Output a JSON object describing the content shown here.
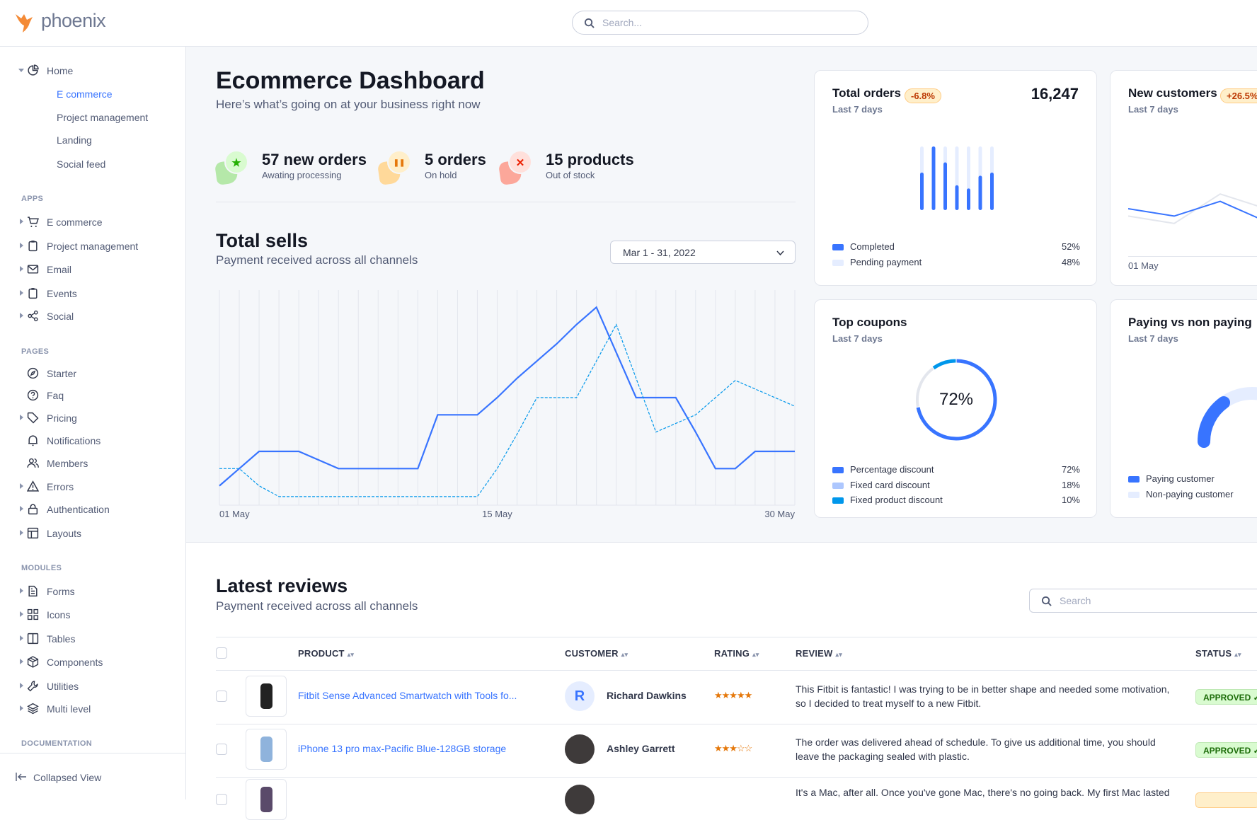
{
  "brand": {
    "name": "phoenix",
    "accent": "#3874ff",
    "logo_color": "#f48a36"
  },
  "topbar": {
    "search_placeholder": "Search..."
  },
  "sidebar": {
    "home": {
      "label": "Home",
      "icon": "pie-chart-icon",
      "children": [
        "E commerce",
        "Project management",
        "Landing",
        "Social feed"
      ],
      "active_child": 0
    },
    "sections": [
      {
        "title": "APPS",
        "items": [
          {
            "label": "E commerce",
            "icon": "cart-icon",
            "caret": true
          },
          {
            "label": "Project management",
            "icon": "clipboard-icon",
            "caret": true
          },
          {
            "label": "Email",
            "icon": "mail-icon",
            "caret": true
          },
          {
            "label": "Events",
            "icon": "clipboard-icon",
            "caret": true
          },
          {
            "label": "Social",
            "icon": "share-icon",
            "caret": true
          }
        ]
      },
      {
        "title": "PAGES",
        "items": [
          {
            "label": "Starter",
            "icon": "compass-icon",
            "caret": false
          },
          {
            "label": "Faq",
            "icon": "help-circle-icon",
            "caret": false
          },
          {
            "label": "Pricing",
            "icon": "tag-icon",
            "caret": true
          },
          {
            "label": "Notifications",
            "icon": "bell-icon",
            "caret": false
          },
          {
            "label": "Members",
            "icon": "users-icon",
            "caret": false
          },
          {
            "label": "Errors",
            "icon": "alert-triangle-icon",
            "caret": true
          },
          {
            "label": "Authentication",
            "icon": "lock-icon",
            "caret": true
          },
          {
            "label": "Layouts",
            "icon": "layout-icon",
            "caret": true
          }
        ]
      },
      {
        "title": "MODULES",
        "items": [
          {
            "label": "Forms",
            "icon": "file-text-icon",
            "caret": true
          },
          {
            "label": "Icons",
            "icon": "grid-icon",
            "caret": true
          },
          {
            "label": "Tables",
            "icon": "columns-icon",
            "caret": true
          },
          {
            "label": "Components",
            "icon": "package-icon",
            "caret": true
          },
          {
            "label": "Utilities",
            "icon": "tool-icon",
            "caret": true
          },
          {
            "label": "Multi level",
            "icon": "layers-icon",
            "caret": true
          }
        ]
      },
      {
        "title": "DOCUMENTATION",
        "items": []
      }
    ],
    "collapse_label": "Collapsed View"
  },
  "dashboard": {
    "title": "Ecommerce Dashboard",
    "subtitle": "Here’s what’s going on at your business right now",
    "stats": [
      {
        "title": "57 new orders",
        "sub": "Awating processing",
        "icon": "star-icon",
        "color": "#25b003",
        "bg": "#d9fbd0",
        "shape": "#b5e8a9"
      },
      {
        "title": "5 orders",
        "sub": "On hold",
        "icon": "pause-icon",
        "color": "#e5780b",
        "bg": "#ffefca",
        "shape": "#ffd99a"
      },
      {
        "title": "15 products",
        "sub": "Out of stock",
        "icon": "x-icon",
        "color": "#ec1f00",
        "bg": "#ffe0db",
        "shape": "#fca79a"
      }
    ]
  },
  "total_sells": {
    "title": "Total sells",
    "subtitle": "Payment received across all channels",
    "date_range": "Mar 1 - 31, 2022"
  },
  "chart_data": [
    {
      "type": "line",
      "x_ticks": [
        "01 May",
        "15 May",
        "30 May"
      ],
      "x_tick_days": [
        1,
        15,
        30
      ],
      "days": 30,
      "ylim": [
        0,
        100
      ],
      "grid": "vertical",
      "series": [
        {
          "style": "solid",
          "color": "#3874ff",
          "values": [
            9,
            17,
            25,
            25,
            25,
            21,
            17,
            17,
            17,
            17,
            17,
            42,
            42,
            42,
            50,
            59,
            67,
            75,
            84,
            92,
            71,
            50,
            50,
            50,
            34,
            17,
            17,
            25,
            25,
            25
          ]
        },
        {
          "style": "dashed",
          "color": "#0097eb",
          "values": [
            17,
            17,
            9,
            4,
            4,
            4,
            4,
            4,
            4,
            4,
            4,
            4,
            4,
            4,
            17,
            33,
            50,
            50,
            50,
            67,
            84,
            59,
            34,
            38,
            42,
            50,
            58,
            54,
            50,
            46
          ]
        }
      ]
    },
    {
      "type": "bar",
      "title": "Total orders",
      "series": [
        {
          "name": "Completed",
          "values": [
            0.59,
            1.0,
            0.75,
            0.39,
            0.34,
            0.54,
            0.59
          ]
        },
        {
          "name": "Pending payment",
          "values": [
            0.41,
            0,
            0.25,
            0.61,
            0.66,
            0.46,
            0.41
          ]
        }
      ]
    },
    {
      "type": "pie",
      "title": "Top coupons",
      "values": [
        72,
        18,
        10
      ]
    }
  ],
  "cards": {
    "total_orders": {
      "title": "Total orders",
      "badge": "-6.8%",
      "value": "16,247",
      "period": "Last 7 days",
      "legend": [
        {
          "label": "Completed",
          "value": "52%",
          "color": "#3874ff"
        },
        {
          "label": "Pending payment",
          "value": "48%",
          "color": "#e5edff"
        }
      ]
    },
    "new_customers": {
      "title": "New customers",
      "badge": "+26.5%",
      "period": "Last 7 days",
      "x_label": "01 May",
      "series": [
        {
          "color": "#3874ff",
          "values": [
            50,
            42,
            58,
            36,
            62
          ]
        },
        {
          "color": "#e3e6ed",
          "values": [
            42,
            34,
            66,
            50,
            58
          ]
        }
      ]
    },
    "top_coupons": {
      "title": "Top coupons",
      "period": "Last 7 days",
      "center": "72%",
      "legend": [
        {
          "label": "Percentage discount",
          "value": "72%",
          "color": "#3874ff"
        },
        {
          "label": "Fixed card discount",
          "value": "18%",
          "color": "#adc7fe"
        },
        {
          "label": "Fixed product discount",
          "value": "10%",
          "color": "#0097eb"
        }
      ]
    },
    "paying": {
      "title": "Paying vs non paying",
      "period": "Last 7 days",
      "paying_fraction": 0.3,
      "legend": [
        {
          "label": "Paying customer",
          "color": "#3874ff"
        },
        {
          "label": "Non-paying customer",
          "color": "#e5edff"
        }
      ]
    }
  },
  "reviews": {
    "title": "Latest reviews",
    "subtitle": "Payment received across all channels",
    "search_placeholder": "Search",
    "columns": [
      "PRODUCT",
      "CUSTOMER",
      "RATING",
      "REVIEW",
      "STATUS"
    ],
    "rows": [
      {
        "product": "Fitbit Sense Advanced Smartwatch with Tools fo...",
        "customer": "Richard Dawkins",
        "avatar_initial": "R",
        "rating": 5,
        "review": "This Fitbit is fantastic! I was trying to be in better shape and needed some motivation, so I decided to treat myself to a new Fitbit.",
        "status": "APPROVED ✓",
        "status_type": "success"
      },
      {
        "product": "iPhone 13 pro max-Pacific Blue-128GB storage",
        "customer": "Ashley Garrett",
        "avatar_initial": "",
        "rating": 3,
        "review": "The order was delivered ahead of schedule. To give us additional time, you should leave the packaging sealed with plastic.",
        "status": "APPROVED ✓",
        "status_type": "success"
      },
      {
        "product": "",
        "customer": "",
        "avatar_initial": "",
        "rating": 0,
        "review": "It's a Mac, after all. Once you've gone Mac, there's no going back. My first Mac lasted",
        "status": "",
        "status_type": "warning"
      }
    ]
  }
}
